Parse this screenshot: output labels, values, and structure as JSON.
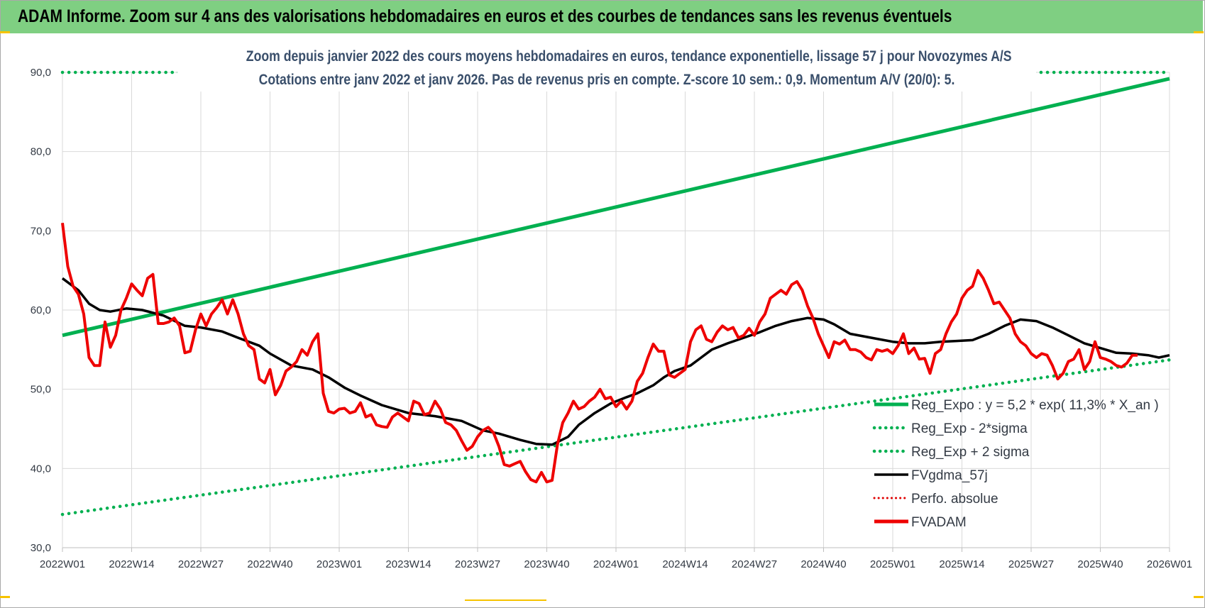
{
  "banner": {
    "title": "ADAM Informe. Zoom sur 4 ans des valorisations hebdomadaires en euros et des courbes de tendances sans les revenus éventuels"
  },
  "colors": {
    "banner_bg": "#7fcf82",
    "reg_line": "#00b050",
    "sigma_dots": "#00b050",
    "fvgdma": "#000000",
    "perfo": "#e00000",
    "fvadam": "#ee0000",
    "corner_accent": "#f7c300"
  },
  "chart_data": {
    "type": "line",
    "title": [
      "Zoom depuis janvier 2022 des cours moyens hebdomadaires en euros, tendance exponentielle, lissage 57 j pour Novozymes A/S",
      "Cotations entre janv 2022 et janv 2026. Pas de revenus pris en compte. Z-score 10 sem.: 0,9. Momentum A/V (20/0): 5."
    ],
    "xlabel": "",
    "ylabel": "",
    "ylim": [
      30,
      90
    ],
    "y_ticks": [
      "30,0",
      "40,0",
      "50,0",
      "60,0",
      "70,0",
      "80,0",
      "90,0"
    ],
    "x_range_weeks": [
      0,
      208
    ],
    "x_ticks": [
      {
        "label": "2022W01",
        "week": 0
      },
      {
        "label": "2022W14",
        "week": 13
      },
      {
        "label": "2022W27",
        "week": 26
      },
      {
        "label": "2022W40",
        "week": 39
      },
      {
        "label": "2023W01",
        "week": 52
      },
      {
        "label": "2023W14",
        "week": 65
      },
      {
        "label": "2023W27",
        "week": 78
      },
      {
        "label": "2023W40",
        "week": 91
      },
      {
        "label": "2024W01",
        "week": 104
      },
      {
        "label": "2024W14",
        "week": 117
      },
      {
        "label": "2024W27",
        "week": 130
      },
      {
        "label": "2024W40",
        "week": 143
      },
      {
        "label": "2025W01",
        "week": 156
      },
      {
        "label": "2025W14",
        "week": 169
      },
      {
        "label": "2025W27",
        "week": 182
      },
      {
        "label": "2025W40",
        "week": 195
      },
      {
        "label": "2026W01",
        "week": 208
      }
    ],
    "grid": true,
    "legend_position": "bottom-right",
    "series": [
      {
        "name": "Reg_Expo : y = 5,2 * exp( 11,3% *  X_an )",
        "style": "solid-thick",
        "color": "#00b050",
        "points": [
          [
            0,
            56.8
          ],
          [
            208,
            89.2
          ]
        ]
      },
      {
        "name": "Reg_Exp - 2*sigma",
        "style": "dotted",
        "color": "#00b050",
        "points": [
          [
            0,
            34.2
          ],
          [
            208,
            53.7
          ]
        ]
      },
      {
        "name": "Reg_Exp + 2 sigma",
        "style": "dotted",
        "color": "#00b050",
        "points": [
          [
            0,
            90.0
          ],
          [
            23,
            90.0
          ]
        ],
        "points_extra": [
          [
            179,
            90.0
          ],
          [
            208,
            90.0
          ]
        ]
      },
      {
        "name": "FVgdma_57j",
        "style": "solid",
        "color": "#000000",
        "points": [
          [
            0,
            64.0
          ],
          [
            3,
            62.5
          ],
          [
            5,
            60.8
          ],
          [
            7,
            60.0
          ],
          [
            9,
            59.8
          ],
          [
            12,
            60.2
          ],
          [
            15,
            60.0
          ],
          [
            19,
            59.3
          ],
          [
            23,
            58.0
          ],
          [
            26,
            57.8
          ],
          [
            30,
            57.3
          ],
          [
            33,
            56.5
          ],
          [
            37,
            55.5
          ],
          [
            39,
            54.5
          ],
          [
            43,
            53.0
          ],
          [
            47,
            52.5
          ],
          [
            50,
            51.5
          ],
          [
            53,
            50.2
          ],
          [
            56,
            49.2
          ],
          [
            60,
            48.0
          ],
          [
            65,
            47.0
          ],
          [
            70,
            46.6
          ],
          [
            75,
            46.0
          ],
          [
            79,
            44.8
          ],
          [
            82,
            44.4
          ],
          [
            86,
            43.6
          ],
          [
            89,
            43.1
          ],
          [
            92,
            43.0
          ],
          [
            95,
            44.0
          ],
          [
            97,
            45.5
          ],
          [
            100,
            47.0
          ],
          [
            103,
            48.2
          ],
          [
            106,
            49.0
          ],
          [
            108,
            49.5
          ],
          [
            111,
            50.5
          ],
          [
            113,
            51.5
          ],
          [
            115,
            52.3
          ],
          [
            118,
            53.0
          ],
          [
            120,
            54.0
          ],
          [
            122,
            55.0
          ],
          [
            125,
            55.8
          ],
          [
            128,
            56.5
          ],
          [
            131,
            57.2
          ],
          [
            134,
            58.0
          ],
          [
            137,
            58.6
          ],
          [
            140,
            59.0
          ],
          [
            143,
            58.8
          ],
          [
            145,
            58.2
          ],
          [
            148,
            57.0
          ],
          [
            152,
            56.5
          ],
          [
            156,
            56.0
          ],
          [
            159,
            55.8
          ],
          [
            162,
            55.8
          ],
          [
            165,
            56.0
          ],
          [
            168,
            56.1
          ],
          [
            171,
            56.2
          ],
          [
            174,
            57.0
          ],
          [
            177,
            58.0
          ],
          [
            180,
            58.8
          ],
          [
            183,
            58.6
          ],
          [
            186,
            57.8
          ],
          [
            189,
            56.8
          ],
          [
            192,
            55.8
          ],
          [
            195,
            55.2
          ],
          [
            198,
            54.6
          ],
          [
            201,
            54.5
          ],
          [
            204,
            54.3
          ],
          [
            206,
            54.0
          ],
          [
            208,
            54.3
          ]
        ]
      },
      {
        "name": "Perfo. absolue",
        "style": "dotted",
        "color": "#e00000",
        "points": []
      },
      {
        "name": "FVADAM",
        "style": "solid-thick",
        "color": "#ee0000",
        "points": [
          [
            0,
            71.0
          ],
          [
            1,
            65.5
          ],
          [
            2,
            63.0
          ],
          [
            3,
            62.0
          ],
          [
            4,
            59.5
          ],
          [
            5,
            54.0
          ],
          [
            6,
            53.0
          ],
          [
            7,
            53.0
          ],
          [
            8,
            58.5
          ],
          [
            9,
            55.3
          ],
          [
            10,
            56.8
          ],
          [
            11,
            60.0
          ],
          [
            12,
            61.5
          ],
          [
            13,
            63.3
          ],
          [
            14,
            62.5
          ],
          [
            15,
            61.8
          ],
          [
            16,
            64.0
          ],
          [
            17,
            64.5
          ],
          [
            18,
            58.3
          ],
          [
            19,
            58.3
          ],
          [
            20,
            58.5
          ],
          [
            21,
            59.0
          ],
          [
            22,
            58.0
          ],
          [
            23,
            54.6
          ],
          [
            24,
            54.8
          ],
          [
            25,
            57.5
          ],
          [
            26,
            59.5
          ],
          [
            27,
            58.0
          ],
          [
            28,
            59.5
          ],
          [
            29,
            60.3
          ],
          [
            30,
            61.3
          ],
          [
            31,
            59.5
          ],
          [
            32,
            61.3
          ],
          [
            33,
            59.5
          ],
          [
            34,
            57.0
          ],
          [
            35,
            55.5
          ],
          [
            36,
            55.0
          ],
          [
            37,
            51.3
          ],
          [
            38,
            50.8
          ],
          [
            39,
            52.5
          ],
          [
            40,
            49.3
          ],
          [
            41,
            50.5
          ],
          [
            42,
            52.3
          ],
          [
            43,
            52.8
          ],
          [
            44,
            53.5
          ],
          [
            45,
            55.0
          ],
          [
            46,
            54.3
          ],
          [
            47,
            56.0
          ],
          [
            48,
            57.0
          ],
          [
            49,
            49.5
          ],
          [
            50,
            47.2
          ],
          [
            51,
            47.0
          ],
          [
            52,
            47.5
          ],
          [
            53,
            47.6
          ],
          [
            54,
            47.0
          ],
          [
            55,
            47.2
          ],
          [
            56,
            48.3
          ],
          [
            57,
            46.5
          ],
          [
            58,
            46.8
          ],
          [
            59,
            45.5
          ],
          [
            60,
            45.3
          ],
          [
            61,
            45.2
          ],
          [
            62,
            46.5
          ],
          [
            63,
            47.0
          ],
          [
            64,
            46.5
          ],
          [
            65,
            46.0
          ],
          [
            66,
            48.5
          ],
          [
            67,
            48.2
          ],
          [
            68,
            46.8
          ],
          [
            69,
            47.0
          ],
          [
            70,
            48.5
          ],
          [
            71,
            47.5
          ],
          [
            72,
            45.8
          ],
          [
            73,
            45.5
          ],
          [
            74,
            44.8
          ],
          [
            75,
            43.5
          ],
          [
            76,
            42.3
          ],
          [
            77,
            42.8
          ],
          [
            78,
            44.0
          ],
          [
            79,
            44.8
          ],
          [
            80,
            45.2
          ],
          [
            81,
            44.5
          ],
          [
            82,
            42.8
          ],
          [
            83,
            40.5
          ],
          [
            84,
            40.3
          ],
          [
            85,
            40.6
          ],
          [
            86,
            40.9
          ],
          [
            87,
            39.6
          ],
          [
            88,
            38.6
          ],
          [
            89,
            38.3
          ],
          [
            90,
            39.5
          ],
          [
            91,
            38.3
          ],
          [
            92,
            38.5
          ],
          [
            93,
            43.0
          ],
          [
            94,
            45.8
          ],
          [
            95,
            47.0
          ],
          [
            96,
            48.5
          ],
          [
            97,
            47.5
          ],
          [
            98,
            47.8
          ],
          [
            99,
            48.5
          ],
          [
            100,
            49.0
          ],
          [
            101,
            50.0
          ],
          [
            102,
            48.8
          ],
          [
            103,
            49.0
          ],
          [
            104,
            47.8
          ],
          [
            105,
            48.5
          ],
          [
            106,
            47.5
          ],
          [
            107,
            48.5
          ],
          [
            108,
            51.0
          ],
          [
            109,
            52.0
          ],
          [
            110,
            54.0
          ],
          [
            111,
            55.7
          ],
          [
            112,
            54.8
          ],
          [
            113,
            54.8
          ],
          [
            114,
            51.8
          ],
          [
            115,
            51.5
          ],
          [
            116,
            52.0
          ],
          [
            117,
            52.5
          ],
          [
            118,
            56.0
          ],
          [
            119,
            57.5
          ],
          [
            120,
            58.0
          ],
          [
            121,
            56.3
          ],
          [
            122,
            56.0
          ],
          [
            123,
            57.2
          ],
          [
            124,
            58.0
          ],
          [
            125,
            57.5
          ],
          [
            126,
            57.8
          ],
          [
            127,
            56.5
          ],
          [
            128,
            56.8
          ],
          [
            129,
            57.7
          ],
          [
            130,
            56.8
          ],
          [
            131,
            58.5
          ],
          [
            132,
            59.5
          ],
          [
            133,
            61.5
          ],
          [
            134,
            62.0
          ],
          [
            135,
            62.5
          ],
          [
            136,
            62.0
          ],
          [
            137,
            63.2
          ],
          [
            138,
            63.6
          ],
          [
            139,
            62.5
          ],
          [
            140,
            60.5
          ],
          [
            141,
            59.0
          ],
          [
            142,
            57.0
          ],
          [
            143,
            55.5
          ],
          [
            144,
            54.0
          ],
          [
            145,
            56.0
          ],
          [
            146,
            55.7
          ],
          [
            147,
            56.2
          ],
          [
            148,
            55.0
          ],
          [
            149,
            55.0
          ],
          [
            150,
            54.7
          ],
          [
            151,
            54.0
          ],
          [
            152,
            53.7
          ],
          [
            153,
            55.0
          ],
          [
            154,
            54.8
          ],
          [
            155,
            55.0
          ],
          [
            156,
            54.5
          ],
          [
            157,
            55.5
          ],
          [
            158,
            57.0
          ],
          [
            159,
            54.5
          ],
          [
            160,
            55.2
          ],
          [
            161,
            53.8
          ],
          [
            162,
            53.9
          ],
          [
            163,
            52.0
          ],
          [
            164,
            54.5
          ],
          [
            165,
            55.0
          ],
          [
            166,
            57.0
          ],
          [
            167,
            58.5
          ],
          [
            168,
            59.5
          ],
          [
            169,
            61.5
          ],
          [
            170,
            62.5
          ],
          [
            171,
            63.0
          ],
          [
            172,
            65.0
          ],
          [
            173,
            64.0
          ],
          [
            174,
            62.5
          ],
          [
            175,
            60.8
          ],
          [
            176,
            61.0
          ],
          [
            177,
            60.0
          ],
          [
            178,
            59.0
          ],
          [
            179,
            57.0
          ],
          [
            180,
            56.0
          ],
          [
            181,
            55.5
          ],
          [
            182,
            54.5
          ],
          [
            183,
            54.0
          ],
          [
            184,
            54.5
          ],
          [
            185,
            54.3
          ],
          [
            186,
            53.0
          ],
          [
            187,
            51.3
          ],
          [
            188,
            52.0
          ],
          [
            189,
            53.5
          ],
          [
            190,
            53.8
          ],
          [
            191,
            55.0
          ],
          [
            192,
            52.5
          ],
          [
            193,
            53.5
          ],
          [
            194,
            56.0
          ],
          [
            195,
            54.0
          ],
          [
            196,
            53.8
          ],
          [
            197,
            53.5
          ],
          [
            198,
            53.0
          ],
          [
            199,
            52.8
          ],
          [
            200,
            53.3
          ],
          [
            201,
            54.3
          ],
          [
            202,
            54.3
          ]
        ]
      }
    ]
  }
}
